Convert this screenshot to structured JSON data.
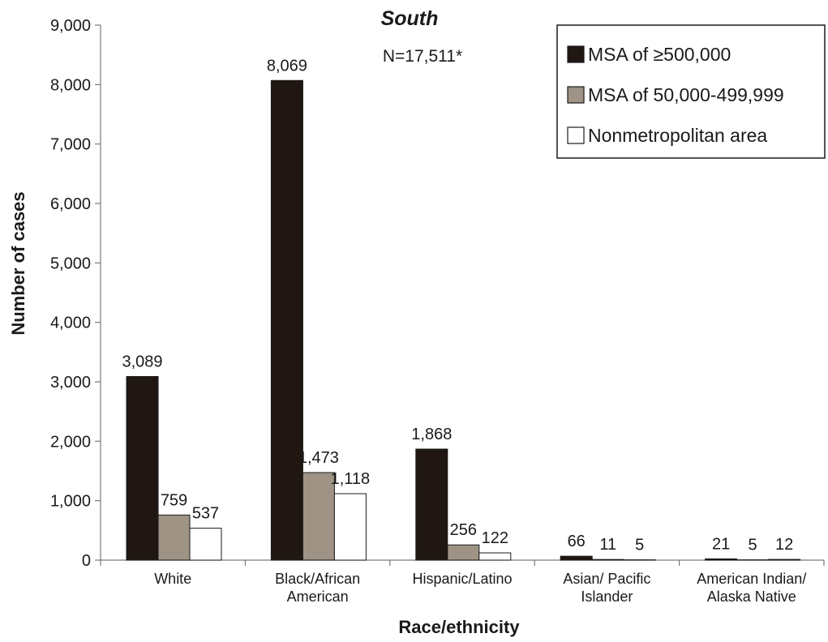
{
  "chart_data": {
    "type": "bar",
    "title": "South",
    "subtitle": "N=17,511*",
    "xlabel": "Race/ethnicity",
    "ylabel": "Number of cases",
    "ylim": [
      0,
      9000
    ],
    "yticks": [
      0,
      1000,
      2000,
      3000,
      4000,
      5000,
      6000,
      7000,
      8000,
      9000
    ],
    "ytick_labels": [
      "0",
      "1,000",
      "2,000",
      "3,000",
      "4,000",
      "5,000",
      "6,000",
      "7,000",
      "8,000",
      "9,000"
    ],
    "grid": false,
    "legend_position": "top-right",
    "categories": [
      [
        "White"
      ],
      [
        "Black/African",
        "American"
      ],
      [
        "Hispanic/Latino"
      ],
      [
        "Asian/ Pacific",
        "Islander"
      ],
      [
        "American Indian/",
        "Alaska Native"
      ]
    ],
    "series": [
      {
        "name": "MSA of ≥500,000",
        "color": "#201612",
        "values": [
          3089,
          8069,
          1868,
          66,
          21
        ],
        "labels": [
          "3,089",
          "8,069",
          "1,868",
          "66",
          "21"
        ]
      },
      {
        "name": "MSA of 50,000-499,999",
        "color": "#9e9384",
        "values": [
          759,
          1473,
          256,
          11,
          5
        ],
        "labels": [
          "759",
          "1,473",
          "256",
          "11",
          "5"
        ]
      },
      {
        "name": "Nonmetropolitan area",
        "color": "#ffffff",
        "values": [
          537,
          1118,
          122,
          5,
          12
        ],
        "labels": [
          "537",
          "1,118",
          "122",
          "5",
          "12"
        ]
      }
    ]
  }
}
